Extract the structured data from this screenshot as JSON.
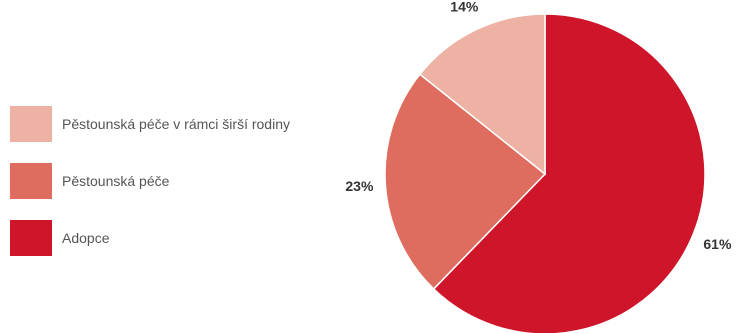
{
  "chart_data": {
    "type": "pie",
    "title": "",
    "slices": [
      {
        "label": "Adopce",
        "value": 61,
        "display": "61%",
        "color": "#CE1529"
      },
      {
        "label": "Pěstounská péče",
        "value": 23,
        "display": "23%",
        "color": "#DE6D5F"
      },
      {
        "label": "Pěstounská péče v rámci širší rodiny",
        "value": 14,
        "display": "14%",
        "color": "#EDB2A3"
      }
    ],
    "start_position": "top",
    "direction": "clockwise",
    "legend_placement": "left",
    "legend_order": [
      "Pěstounská péče v rámci širší rodiny",
      "Pěstounská péče",
      "Adopce"
    ]
  }
}
